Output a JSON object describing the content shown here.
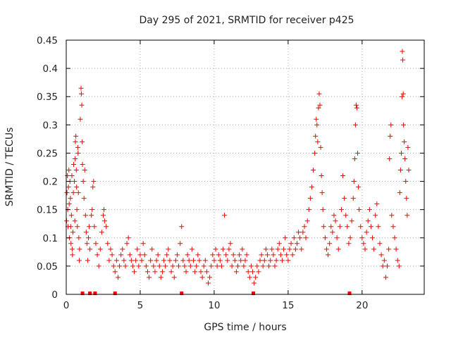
{
  "chart_data": {
    "type": "scatter",
    "title": "Day 295 of 2021, SRMTID for receiver p425",
    "xlabel": "GPS time / hours",
    "ylabel": "SRMTID / TECUs",
    "xlim": [
      0,
      24.2
    ],
    "ylim": [
      0,
      0.45
    ],
    "xticks": [
      0,
      5,
      10,
      15,
      20
    ],
    "xtick_labels": [
      "0",
      "5",
      "10",
      "15",
      "20"
    ],
    "yticks": [
      0,
      0.05,
      0.1,
      0.15,
      0.2,
      0.25,
      0.3,
      0.35,
      0.4,
      0.45
    ],
    "ytick_labels": [
      "0",
      "0.05",
      "0.1",
      "0.15",
      "0.2",
      "0.25",
      "0.3",
      "0.35",
      "0.4",
      "0.45"
    ],
    "grid": true,
    "marker": "+",
    "color": "#ff0000",
    "series": [
      {
        "name": "SRMTID",
        "points": [
          [
            0.02,
            0.13
          ],
          [
            0.05,
            0.18
          ],
          [
            0.08,
            0.21
          ],
          [
            0.1,
            0.15
          ],
          [
            0.12,
            0.12
          ],
          [
            0.15,
            0.19
          ],
          [
            0.18,
            0.22
          ],
          [
            0.2,
            0.16
          ],
          [
            0.22,
            0.1
          ],
          [
            0.25,
            0.2
          ],
          [
            0.28,
            0.17
          ],
          [
            0.3,
            0.12
          ],
          [
            0.32,
            0.09
          ],
          [
            0.35,
            0.14
          ],
          [
            0.38,
            0.21
          ],
          [
            0.4,
            0.08
          ],
          [
            0.42,
            0.07
          ],
          [
            0.45,
            0.11
          ],
          [
            0.48,
            0.18
          ],
          [
            0.5,
            0.23
          ],
          [
            0.55,
            0.2
          ],
          [
            0.58,
            0.13
          ],
          [
            0.6,
            0.24
          ],
          [
            0.62,
            0.27
          ],
          [
            0.65,
            0.28
          ],
          [
            0.68,
            0.22
          ],
          [
            0.7,
            0.19
          ],
          [
            0.72,
            0.15
          ],
          [
            0.75,
            0.12
          ],
          [
            0.78,
            0.26
          ],
          [
            0.8,
            0.25
          ],
          [
            0.82,
            0.18
          ],
          [
            0.85,
            0.1
          ],
          [
            0.88,
            0.06
          ],
          [
            0.9,
            0.08
          ],
          [
            0.95,
            0.31
          ],
          [
            1.0,
            0.365
          ],
          [
            1.02,
            0.355
          ],
          [
            1.05,
            0.335
          ],
          [
            1.08,
            0.27
          ],
          [
            1.1,
            0.23
          ],
          [
            1.15,
            0.2
          ],
          [
            1.2,
            0.17
          ],
          [
            1.25,
            0.22
          ],
          [
            1.3,
            0.14
          ],
          [
            1.35,
            0.11
          ],
          [
            1.4,
            0.09
          ],
          [
            1.45,
            0.06
          ],
          [
            1.5,
            0.1
          ],
          [
            1.55,
            0.12
          ],
          [
            1.6,
            0.08
          ],
          [
            1.7,
            0.14
          ],
          [
            1.75,
            0.15
          ],
          [
            1.8,
            0.19
          ],
          [
            1.85,
            0.2
          ],
          [
            1.9,
            0.12
          ],
          [
            2.0,
            0.09
          ],
          [
            2.1,
            0.07
          ],
          [
            2.2,
            0.05
          ],
          [
            2.3,
            0.08
          ],
          [
            2.4,
            0.11
          ],
          [
            2.5,
            0.14
          ],
          [
            2.55,
            0.15
          ],
          [
            2.6,
            0.13
          ],
          [
            2.7,
            0.12
          ],
          [
            2.8,
            0.09
          ],
          [
            2.9,
            0.06
          ],
          [
            3.0,
            0.08
          ],
          [
            3.1,
            0.07
          ],
          [
            3.2,
            0.05
          ],
          [
            3.3,
            0.04
          ],
          [
            3.4,
            0.06
          ],
          [
            3.5,
            0.03
          ],
          [
            3.6,
            0.05
          ],
          [
            3.7,
            0.07
          ],
          [
            3.8,
            0.08
          ],
          [
            3.9,
            0.06
          ],
          [
            4.0,
            0.05
          ],
          [
            4.1,
            0.09
          ],
          [
            4.2,
            0.1
          ],
          [
            4.3,
            0.07
          ],
          [
            4.4,
            0.06
          ],
          [
            4.5,
            0.05
          ],
          [
            4.6,
            0.04
          ],
          [
            4.7,
            0.06
          ],
          [
            4.8,
            0.08
          ],
          [
            4.9,
            0.05
          ],
          [
            5.0,
            0.07
          ],
          [
            5.1,
            0.06
          ],
          [
            5.2,
            0.09
          ],
          [
            5.3,
            0.07
          ],
          [
            5.4,
            0.05
          ],
          [
            5.5,
            0.04
          ],
          [
            5.6,
            0.03
          ],
          [
            5.7,
            0.06
          ],
          [
            5.8,
            0.08
          ],
          [
            5.9,
            0.05
          ],
          [
            6.0,
            0.04
          ],
          [
            6.1,
            0.06
          ],
          [
            6.2,
            0.07
          ],
          [
            6.3,
            0.05
          ],
          [
            6.4,
            0.03
          ],
          [
            6.5,
            0.04
          ],
          [
            6.6,
            0.06
          ],
          [
            6.7,
            0.05
          ],
          [
            6.8,
            0.07
          ],
          [
            6.9,
            0.08
          ],
          [
            7.0,
            0.06
          ],
          [
            7.1,
            0.04
          ],
          [
            7.2,
            0.05
          ],
          [
            7.3,
            0.03
          ],
          [
            7.4,
            0.06
          ],
          [
            7.5,
            0.07
          ],
          [
            7.6,
            0.05
          ],
          [
            7.7,
            0.09
          ],
          [
            7.8,
            0.12
          ],
          [
            7.9,
            0.06
          ],
          [
            8.0,
            0.05
          ],
          [
            8.1,
            0.04
          ],
          [
            8.2,
            0.07
          ],
          [
            8.3,
            0.06
          ],
          [
            8.4,
            0.05
          ],
          [
            8.5,
            0.08
          ],
          [
            8.6,
            0.06
          ],
          [
            8.7,
            0.04
          ],
          [
            8.8,
            0.05
          ],
          [
            8.9,
            0.07
          ],
          [
            9.0,
            0.06
          ],
          [
            9.1,
            0.04
          ],
          [
            9.2,
            0.03
          ],
          [
            9.3,
            0.05
          ],
          [
            9.4,
            0.06
          ],
          [
            9.5,
            0.04
          ],
          [
            9.6,
            0.02
          ],
          [
            9.7,
            0.03
          ],
          [
            9.8,
            0.05
          ],
          [
            9.9,
            0.07
          ],
          [
            10.0,
            0.06
          ],
          [
            10.1,
            0.08
          ],
          [
            10.2,
            0.05
          ],
          [
            10.3,
            0.07
          ],
          [
            10.4,
            0.06
          ],
          [
            10.5,
            0.05
          ],
          [
            10.6,
            0.08
          ],
          [
            10.7,
            0.14
          ],
          [
            10.8,
            0.07
          ],
          [
            10.9,
            0.06
          ],
          [
            11.0,
            0.08
          ],
          [
            11.1,
            0.09
          ],
          [
            11.2,
            0.05
          ],
          [
            11.3,
            0.07
          ],
          [
            11.4,
            0.06
          ],
          [
            11.5,
            0.04
          ],
          [
            11.6,
            0.05
          ],
          [
            11.7,
            0.07
          ],
          [
            11.8,
            0.06
          ],
          [
            11.9,
            0.08
          ],
          [
            12.0,
            0.05
          ],
          [
            12.1,
            0.06
          ],
          [
            12.2,
            0.07
          ],
          [
            12.3,
            0.04
          ],
          [
            12.4,
            0.03
          ],
          [
            12.5,
            0.05
          ],
          [
            12.6,
            0.04
          ],
          [
            12.7,
            0.02
          ],
          [
            12.8,
            0.03
          ],
          [
            12.9,
            0.05
          ],
          [
            13.0,
            0.04
          ],
          [
            13.1,
            0.06
          ],
          [
            13.2,
            0.07
          ],
          [
            13.3,
            0.05
          ],
          [
            13.4,
            0.06
          ],
          [
            13.5,
            0.08
          ],
          [
            13.6,
            0.07
          ],
          [
            13.7,
            0.05
          ],
          [
            13.8,
            0.06
          ],
          [
            13.9,
            0.08
          ],
          [
            14.0,
            0.07
          ],
          [
            14.1,
            0.05
          ],
          [
            14.2,
            0.06
          ],
          [
            14.3,
            0.08
          ],
          [
            14.4,
            0.09
          ],
          [
            14.5,
            0.07
          ],
          [
            14.6,
            0.06
          ],
          [
            14.7,
            0.08
          ],
          [
            14.8,
            0.1
          ],
          [
            14.9,
            0.07
          ],
          [
            15.0,
            0.06
          ],
          [
            15.1,
            0.08
          ],
          [
            15.2,
            0.09
          ],
          [
            15.3,
            0.07
          ],
          [
            15.4,
            0.1
          ],
          [
            15.5,
            0.08
          ],
          [
            15.6,
            0.09
          ],
          [
            15.7,
            0.11
          ],
          [
            15.8,
            0.1
          ],
          [
            15.9,
            0.08
          ],
          [
            16.0,
            0.11
          ],
          [
            16.1,
            0.12
          ],
          [
            16.2,
            0.1
          ],
          [
            16.3,
            0.13
          ],
          [
            16.4,
            0.15
          ],
          [
            16.5,
            0.17
          ],
          [
            16.6,
            0.19
          ],
          [
            16.7,
            0.22
          ],
          [
            16.8,
            0.25
          ],
          [
            16.85,
            0.28
          ],
          [
            16.9,
            0.31
          ],
          [
            16.95,
            0.3
          ],
          [
            17.0,
            0.27
          ],
          [
            17.05,
            0.33
          ],
          [
            17.1,
            0.355
          ],
          [
            17.15,
            0.335
          ],
          [
            17.2,
            0.26
          ],
          [
            17.25,
            0.21
          ],
          [
            17.3,
            0.18
          ],
          [
            17.35,
            0.15
          ],
          [
            17.4,
            0.12
          ],
          [
            17.5,
            0.1
          ],
          [
            17.6,
            0.08
          ],
          [
            17.7,
            0.07
          ],
          [
            17.8,
            0.09
          ],
          [
            17.9,
            0.12
          ],
          [
            18.0,
            0.11
          ],
          [
            18.1,
            0.14
          ],
          [
            18.2,
            0.13
          ],
          [
            18.3,
            0.1
          ],
          [
            18.4,
            0.08
          ],
          [
            18.5,
            0.12
          ],
          [
            18.6,
            0.15
          ],
          [
            18.7,
            0.21
          ],
          [
            18.8,
            0.17
          ],
          [
            18.9,
            0.14
          ],
          [
            19.0,
            0.12
          ],
          [
            19.1,
            0.09
          ],
          [
            19.2,
            0.1
          ],
          [
            19.3,
            0.13
          ],
          [
            19.4,
            0.17
          ],
          [
            19.45,
            0.2
          ],
          [
            19.5,
            0.24
          ],
          [
            19.55,
            0.3
          ],
          [
            19.6,
            0.335
          ],
          [
            19.65,
            0.33
          ],
          [
            19.7,
            0.25
          ],
          [
            19.75,
            0.19
          ],
          [
            19.8,
            0.15
          ],
          [
            19.9,
            0.12
          ],
          [
            20.0,
            0.1
          ],
          [
            20.1,
            0.09
          ],
          [
            20.2,
            0.08
          ],
          [
            20.3,
            0.11
          ],
          [
            20.4,
            0.13
          ],
          [
            20.5,
            0.15
          ],
          [
            20.6,
            0.12
          ],
          [
            20.7,
            0.1
          ],
          [
            20.8,
            0.08
          ],
          [
            20.9,
            0.14
          ],
          [
            21.0,
            0.16
          ],
          [
            21.1,
            0.12
          ],
          [
            21.2,
            0.09
          ],
          [
            21.3,
            0.07
          ],
          [
            21.4,
            0.05
          ],
          [
            21.5,
            0.06
          ],
          [
            21.6,
            0.03
          ],
          [
            21.7,
            0.05
          ],
          [
            21.8,
            0.08
          ],
          [
            21.85,
            0.24
          ],
          [
            21.9,
            0.28
          ],
          [
            21.95,
            0.3
          ],
          [
            22.0,
            0.14
          ],
          [
            22.1,
            0.12
          ],
          [
            22.2,
            0.1
          ],
          [
            22.3,
            0.08
          ],
          [
            22.4,
            0.06
          ],
          [
            22.5,
            0.05
          ],
          [
            22.55,
            0.18
          ],
          [
            22.6,
            0.22
          ],
          [
            22.65,
            0.25
          ],
          [
            22.7,
            0.35
          ],
          [
            22.72,
            0.43
          ],
          [
            22.75,
            0.415
          ],
          [
            22.78,
            0.355
          ],
          [
            22.8,
            0.3
          ],
          [
            22.85,
            0.27
          ],
          [
            22.9,
            0.24
          ],
          [
            22.95,
            0.2
          ],
          [
            23.0,
            0.17
          ],
          [
            23.05,
            0.14
          ],
          [
            23.1,
            0.26
          ],
          [
            23.15,
            0.22
          ]
        ]
      }
    ],
    "gap_markers_x": [
      1.1,
      1.6,
      1.95,
      3.3,
      7.8,
      12.65,
      19.15
    ]
  }
}
